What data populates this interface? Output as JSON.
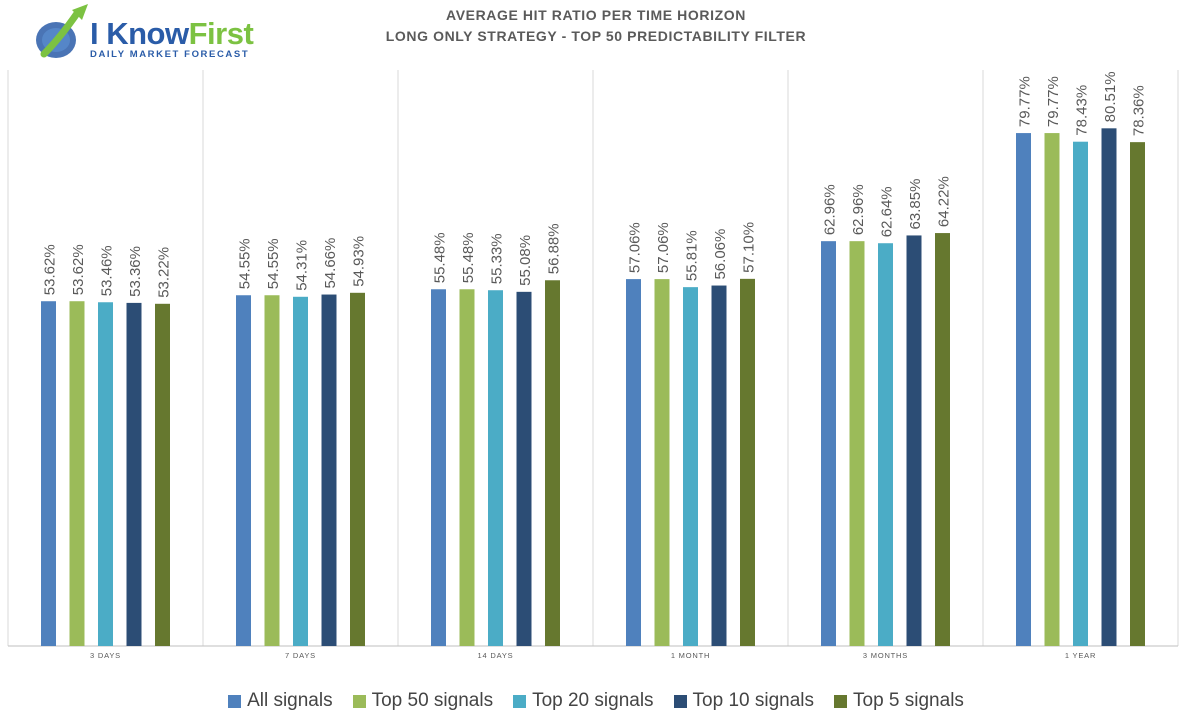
{
  "logo": {
    "brand_part1": "I Know",
    "brand_part2": "First",
    "tagline": "DAILY MARKET FORECAST"
  },
  "colors": {
    "All signals": "#4f81bd",
    "Top 50 signals": "#9bbb59",
    "Top 20 signals": "#4bacc6",
    "Top 10 signals": "#2c4d75",
    "Top 5 signals": "#66782f"
  },
  "chart_data": {
    "type": "bar",
    "title": "AVERAGE HIT RATIO PER TIME HORIZON",
    "subtitle": "LONG ONLY STRATEGY - TOP 50 PREDICTABILITY FILTER",
    "categories": [
      "3 DAYS",
      "7 DAYS",
      "14 DAYS",
      "1 MONTH",
      "3 MONTHS",
      "1 YEAR"
    ],
    "series": [
      {
        "name": "All signals",
        "values": [
          53.62,
          54.55,
          55.48,
          57.06,
          62.96,
          79.77
        ],
        "labels": [
          "53.62%",
          "54.55%",
          "55.48%",
          "57.06%",
          "62.96%",
          "79.77%"
        ]
      },
      {
        "name": "Top 50 signals",
        "values": [
          53.62,
          54.55,
          55.48,
          57.06,
          62.96,
          79.77
        ],
        "labels": [
          "53.62%",
          "54.55%",
          "55.48%",
          "57.06%",
          "62.96%",
          "79.77%"
        ]
      },
      {
        "name": "Top 20 signals",
        "values": [
          53.46,
          54.31,
          55.33,
          55.81,
          62.64,
          78.43
        ],
        "labels": [
          "53.46%",
          "54.31%",
          "55.33%",
          "55.81%",
          "62.64%",
          "78.43%"
        ]
      },
      {
        "name": "Top 10 signals",
        "values": [
          53.36,
          54.66,
          55.08,
          56.06,
          63.85,
          80.51
        ],
        "labels": [
          "53.36%",
          "54.66%",
          "55.08%",
          "56.06%",
          "63.85%",
          "80.51%"
        ]
      },
      {
        "name": "Top 5 signals",
        "values": [
          53.22,
          54.93,
          56.88,
          57.1,
          64.22,
          78.36
        ],
        "labels": [
          "53.22%",
          "54.93%",
          "56.88%",
          "57.10%",
          "64.22%",
          "78.36%"
        ]
      }
    ],
    "xlabel": "",
    "ylabel": "",
    "ylim": [
      0,
      100
    ],
    "grid": "vertical-category-separators",
    "legend": "bottom"
  }
}
